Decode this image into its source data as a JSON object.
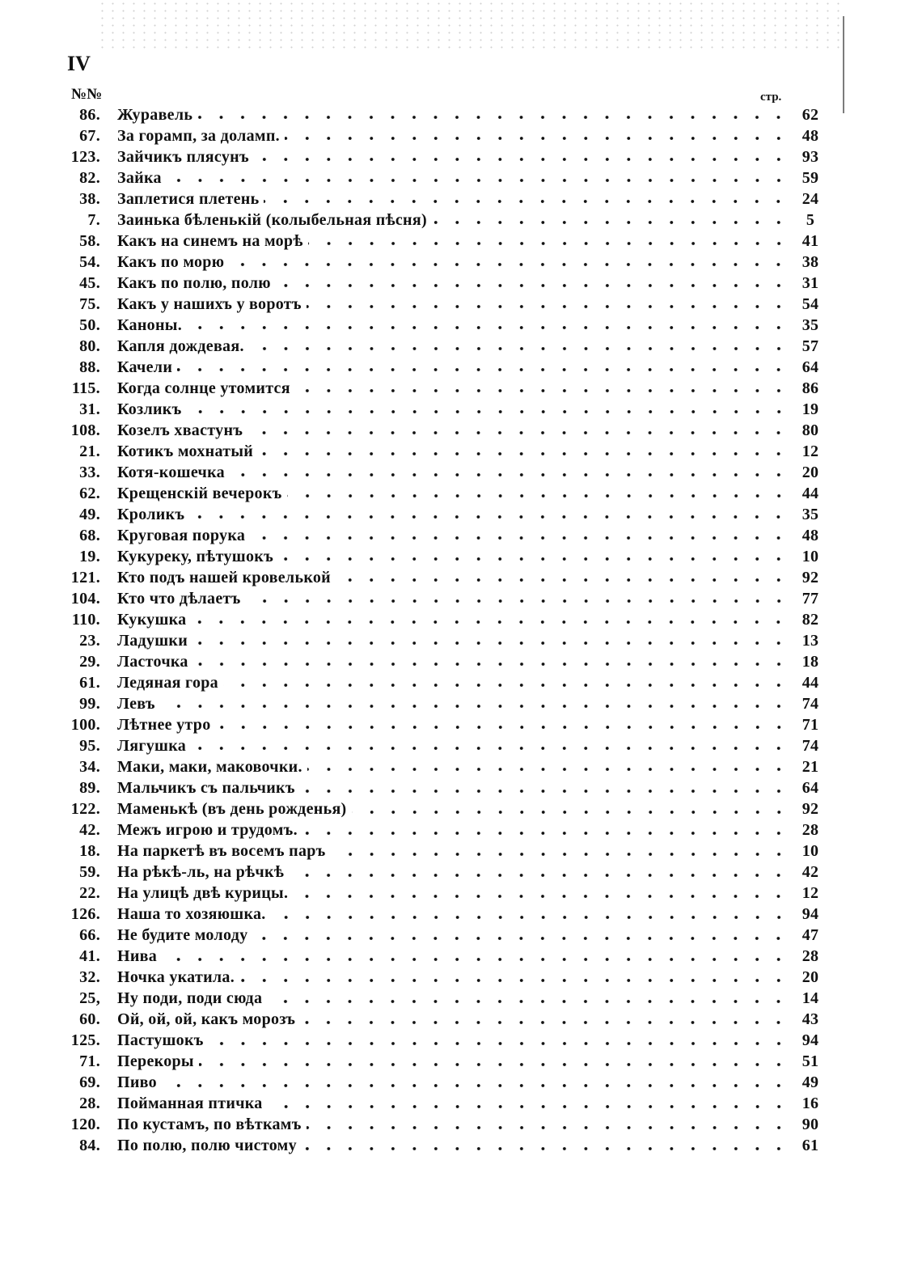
{
  "page_number": "IV",
  "header": {
    "number_label": "№№",
    "page_label": "стр."
  },
  "entries": [
    {
      "no": "86.",
      "title": "Журавель",
      "page": "62"
    },
    {
      "no": "67.",
      "title": "За горамп, за доламп.",
      "page": "48"
    },
    {
      "no": "123.",
      "title": "Зайчикъ плясунъ",
      "page": "93"
    },
    {
      "no": "82.",
      "title": "Зайка",
      "page": "59"
    },
    {
      "no": "38.",
      "title": "Заплетися плетень",
      "page": "24"
    },
    {
      "no": "7.",
      "title": "Заинька бѣленькій (колыбельная пѣсня)",
      "page": "5"
    },
    {
      "no": "58.",
      "title": "Какъ на синемъ на морѣ",
      "page": "41"
    },
    {
      "no": "54.",
      "title": "Какъ по морю",
      "page": "38"
    },
    {
      "no": "45.",
      "title": "Какъ по полю, полю",
      "page": "31"
    },
    {
      "no": "75.",
      "title": "Какъ у нашихъ у воротъ",
      "page": "54"
    },
    {
      "no": "50.",
      "title": "Каноны.",
      "page": "35"
    },
    {
      "no": "80.",
      "title": "Капля дождевая.",
      "page": "57"
    },
    {
      "no": "88.",
      "title": "Качели",
      "page": "64"
    },
    {
      "no": "115.",
      "title": "Когда солнце утомится",
      "page": "86"
    },
    {
      "no": "31.",
      "title": "Козликъ",
      "page": "19"
    },
    {
      "no": "108.",
      "title": "Козелъ хвастунъ",
      "page": "80"
    },
    {
      "no": "21.",
      "title": "Котикъ мохнатый",
      "page": "12"
    },
    {
      "no": "33.",
      "title": "Котя-кошечка",
      "page": "20"
    },
    {
      "no": "62.",
      "title": "Крещенскій вечерокъ",
      "page": "44"
    },
    {
      "no": "49.",
      "title": "Кроликъ",
      "page": "35"
    },
    {
      "no": "68.",
      "title": "Круговая порука",
      "page": "48"
    },
    {
      "no": "19.",
      "title": "Кукуреку, пѣтушокъ",
      "page": "10"
    },
    {
      "no": "121.",
      "title": "Кто подъ нашей кровелькой",
      "page": "92"
    },
    {
      "no": "104.",
      "title": "Кто что дѣлаетъ",
      "page": "77"
    },
    {
      "no": "110.",
      "title": "Кукушка",
      "page": "82"
    },
    {
      "no": "23.",
      "title": "Ладушки",
      "page": "13"
    },
    {
      "no": "29.",
      "title": "Ласточка",
      "page": "18"
    },
    {
      "no": "61.",
      "title": "Ледяная гора",
      "page": "44"
    },
    {
      "no": "99.",
      "title": "Левъ",
      "page": "74"
    },
    {
      "no": "100.",
      "title": "Лѣтнее утро",
      "page": "71"
    },
    {
      "no": "95.",
      "title": "Лягушка",
      "page": "74"
    },
    {
      "no": "34.",
      "title": "Маки, маки, маковочки.",
      "page": "21"
    },
    {
      "no": "89.",
      "title": "Мальчикъ съ пальчикъ",
      "page": "64"
    },
    {
      "no": "122.",
      "title": "Маменькѣ (въ день рожденья)",
      "page": "92"
    },
    {
      "no": "42.",
      "title": "Межъ игрою и трудомъ.",
      "page": "28"
    },
    {
      "no": "18.",
      "title": "На паркетѣ въ восемъ паръ",
      "page": "10"
    },
    {
      "no": "59.",
      "title": "На рѣкѣ-ль, на рѣчкѣ",
      "page": "42"
    },
    {
      "no": "22.",
      "title": "На улицѣ двѣ курицы.",
      "page": "12"
    },
    {
      "no": "126.",
      "title": "Наша то хозяюшка.",
      "page": "94"
    },
    {
      "no": "66.",
      "title": "Не будите молоду",
      "page": "47"
    },
    {
      "no": "41.",
      "title": "Нива",
      "page": "28"
    },
    {
      "no": "32.",
      "title": "Ночка укатила.",
      "page": "20"
    },
    {
      "no": "25,",
      "title": "Ну поди, поди сюда",
      "page": "14"
    },
    {
      "no": "60.",
      "title": "Ой, ой, ой, какъ морозъ",
      "page": "43"
    },
    {
      "no": "125.",
      "title": "Пастушокъ",
      "page": "94"
    },
    {
      "no": "71.",
      "title": "Перекоры",
      "page": "51"
    },
    {
      "no": "69.",
      "title": "Пиво",
      "page": "49"
    },
    {
      "no": "28.",
      "title": "Пойманная птичка",
      "page": "16"
    },
    {
      "no": "120.",
      "title": "По кустамъ, по вѣткамъ",
      "page": "90"
    },
    {
      "no": "84.",
      "title": "По полю, полю чистому",
      "page": "61"
    }
  ]
}
